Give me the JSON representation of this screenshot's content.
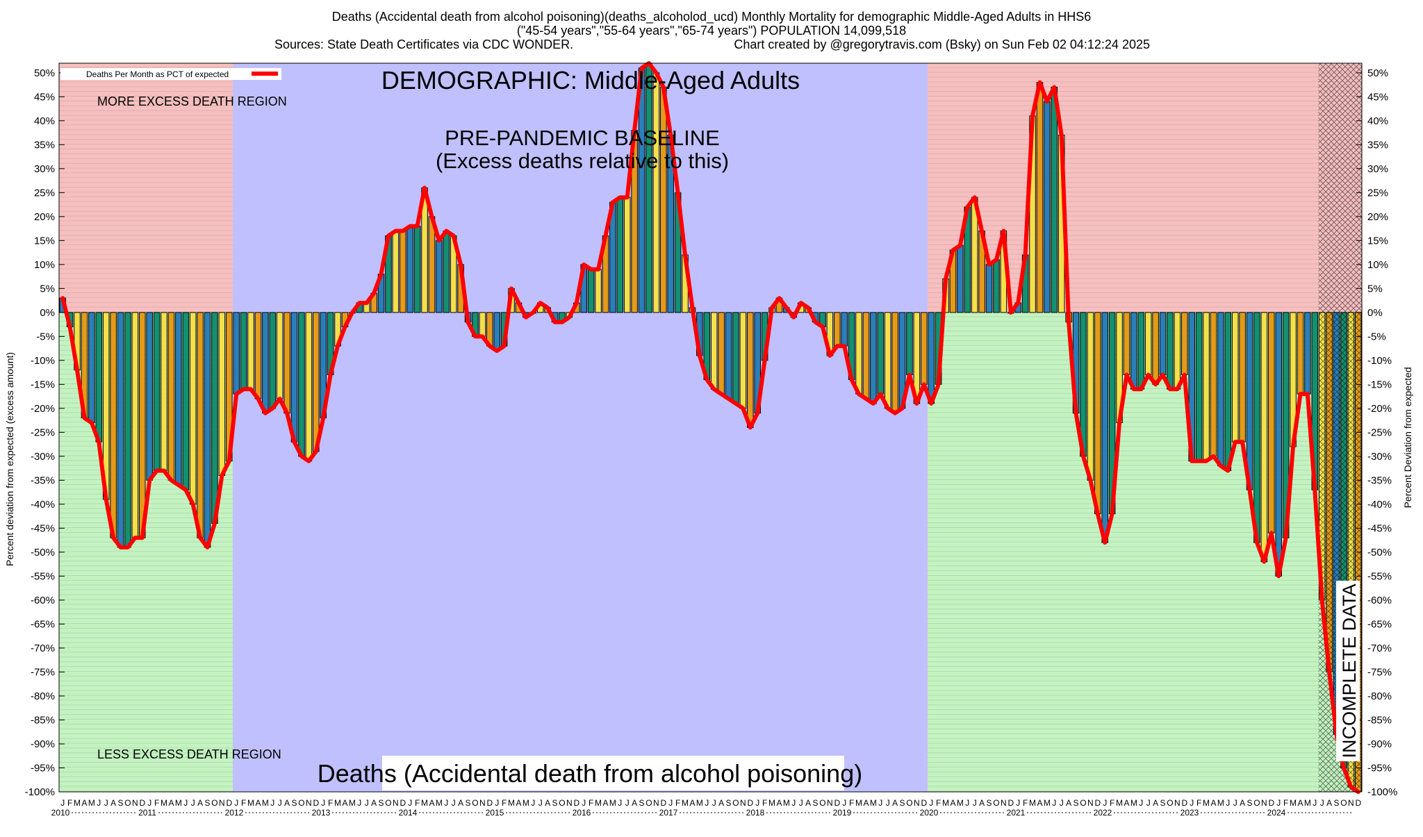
{
  "header": {
    "title_line1": "Deaths (Accidental death from alcohol poisoning)(deaths_alcoholod_ucd) Monthly Mortality for demographic Middle-Aged Adults in HHS6",
    "title_line2": "(\"45-54 years\",\"55-64 years\",\"65-74 years\") POPULATION 14,099,518",
    "title_line3_left": "Sources: State Death Certificates via CDC WONDER.",
    "title_line3_right": "Chart created by @gregorytravis.com (Bsky) on Sun Feb 02 04:12:24 2025"
  },
  "chart_data": {
    "type": "bar",
    "title": "DEMOGRAPHIC: Middle-Aged Adults",
    "bottom_title": "Deaths (Accidental death from alcohol poisoning)",
    "ylabel_left": "Percent deviation from expected (excess amount)",
    "ylabel_right": "Percent Deviation from expected",
    "ylim": [
      -100,
      52
    ],
    "yticks": [
      50,
      45,
      40,
      35,
      30,
      25,
      20,
      15,
      10,
      5,
      0,
      -5,
      -10,
      -15,
      -20,
      -25,
      -30,
      -35,
      -40,
      -45,
      -50,
      -55,
      -60,
      -65,
      -70,
      -75,
      -80,
      -85,
      -90,
      -95,
      -100
    ],
    "ytick_suffix": "%",
    "legend": {
      "label": "Deaths Per Month as PCT of expected",
      "position": "top-left",
      "line_color": "#ff0000"
    },
    "annotations": {
      "more_excess": "MORE EXCESS DEATH REGION",
      "less_excess": "LESS EXCESS DEATH REGION",
      "baseline_line1": "PRE-PANDEMIC BASELINE",
      "baseline_line2": "(Excess deaths relative to this)",
      "incomplete": "INCOMPLETE DATA"
    },
    "x_start": "2010-01",
    "x_end": "2024-12",
    "month_letters": [
      "J",
      "F",
      "M",
      "A",
      "M",
      "J",
      "J",
      "A",
      "S",
      "O",
      "N",
      "D"
    ],
    "years": [
      "2010",
      "2011",
      "2012",
      "2013",
      "2014",
      "2015",
      "2016",
      "2017",
      "2018",
      "2019",
      "2020",
      "2021",
      "2022",
      "2023",
      "2024"
    ],
    "baseline_period": [
      "2012-01",
      "2019-12"
    ],
    "incomplete_from": "2024-07",
    "bar_colors": [
      "#2a7fb8",
      "#139070",
      "#f3e04a",
      "#e49b1a"
    ],
    "region_colors": {
      "more_excess": "#f7bfbf",
      "less_excess": "#c3f3c0",
      "baseline": "#c0c0ff",
      "line": "#ff0000"
    },
    "values": [
      3,
      -3,
      -12,
      -22,
      -23,
      -27,
      -39,
      -47,
      -49,
      -49,
      -47,
      -47,
      -35,
      -33,
      -33,
      -35,
      -36,
      -37,
      -40,
      -47,
      -49,
      -44,
      -34,
      -31,
      -17,
      -16,
      -16,
      -18,
      -21,
      -20,
      -18,
      -21,
      -27,
      -30,
      -31,
      -29,
      -22,
      -13,
      -7,
      -3,
      0,
      2,
      2,
      4,
      8,
      16,
      17,
      17,
      18,
      18,
      26,
      20,
      15,
      17,
      16,
      10,
      -2,
      -5,
      -5,
      -7,
      -8,
      -7,
      5,
      2,
      -1,
      0,
      2,
      1,
      -2,
      -2,
      -1,
      2,
      10,
      9,
      9,
      16,
      23,
      24,
      24,
      38,
      51,
      52,
      50,
      47,
      37,
      25,
      12,
      1,
      -9,
      -14,
      -16,
      -17,
      -18,
      -19,
      -20,
      -24,
      -21,
      -10,
      1,
      3,
      1,
      -1,
      2,
      1,
      -2,
      -3,
      -9,
      -7,
      -7,
      -14,
      -17,
      -18,
      -19,
      -17,
      -20,
      -21,
      -20,
      -13,
      -19,
      -15,
      -19,
      -15,
      7,
      13,
      14,
      22,
      24,
      17,
      10,
      11,
      17,
      0,
      2,
      12,
      41,
      48,
      44,
      47,
      37,
      -2,
      -21,
      -30,
      -35,
      -42,
      -48,
      -42,
      -23,
      -13,
      -16,
      -16,
      -13,
      -15,
      -13,
      -16,
      -16,
      -13,
      -31,
      -31,
      -31,
      -30,
      -32,
      -33,
      -27,
      -27,
      -37,
      -48,
      -52,
      -46,
      -55,
      -47,
      -28,
      -17,
      -17,
      -37,
      -60,
      -75,
      -88,
      -95,
      -99,
      -100
    ]
  }
}
